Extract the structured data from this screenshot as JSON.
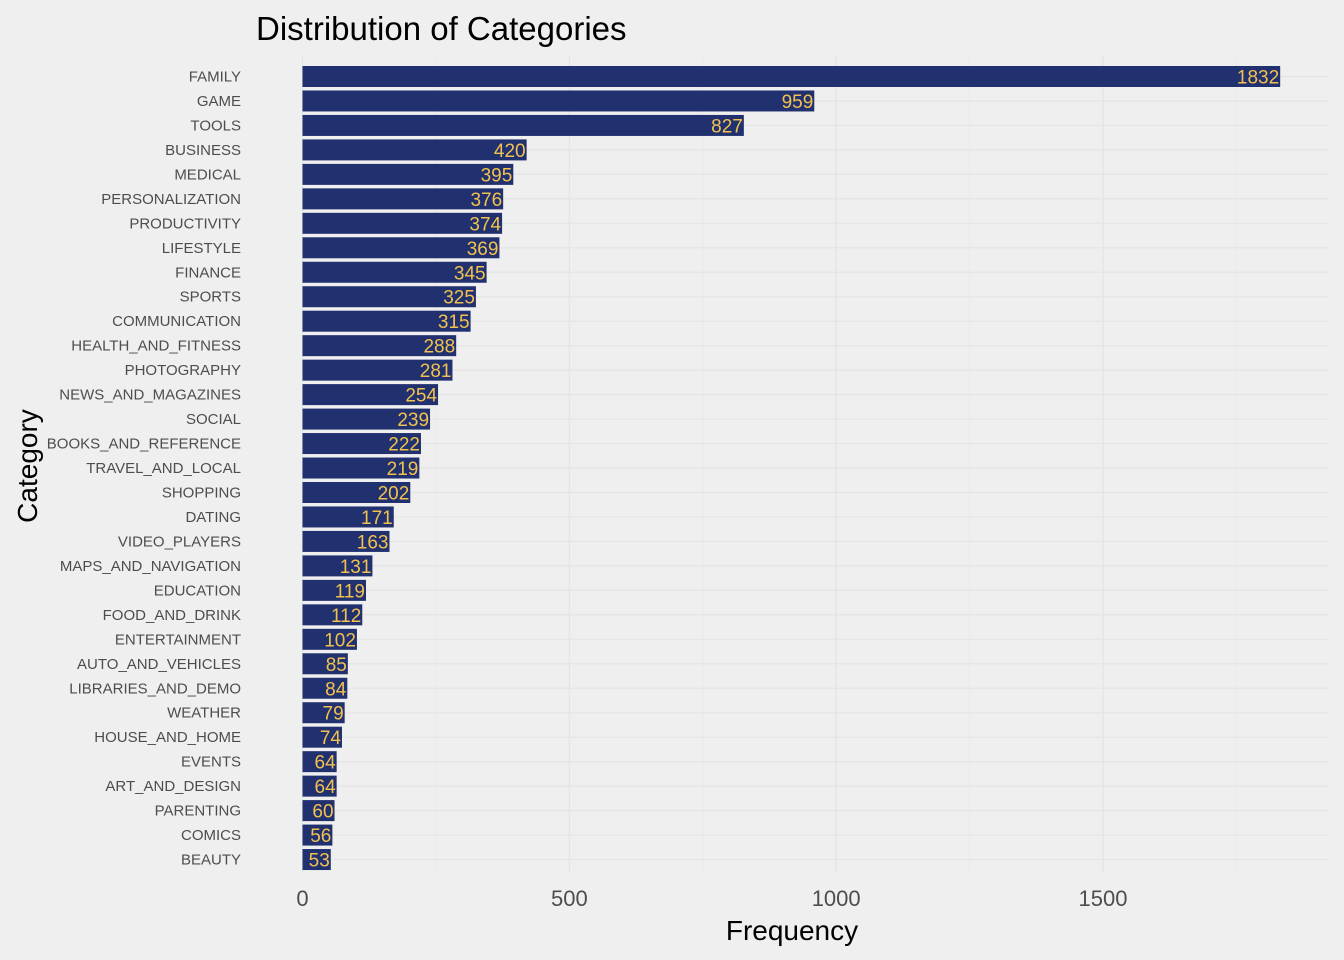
{
  "chart_data": {
    "type": "bar",
    "orientation": "horizontal",
    "title": "Distribution of Categories",
    "xlabel": "Frequency",
    "ylabel": "Category",
    "xlim": [
      0,
      1900
    ],
    "x_ticks": [
      0,
      500,
      1000,
      1500
    ],
    "grid": true,
    "legend": "none",
    "colors": {
      "bar": "#213170",
      "label": "#f2c14e",
      "background": "#efefef"
    },
    "categories": [
      "FAMILY",
      "GAME",
      "TOOLS",
      "BUSINESS",
      "MEDICAL",
      "PERSONALIZATION",
      "PRODUCTIVITY",
      "LIFESTYLE",
      "FINANCE",
      "SPORTS",
      "COMMUNICATION",
      "HEALTH_AND_FITNESS",
      "PHOTOGRAPHY",
      "NEWS_AND_MAGAZINES",
      "SOCIAL",
      "BOOKS_AND_REFERENCE",
      "TRAVEL_AND_LOCAL",
      "SHOPPING",
      "DATING",
      "VIDEO_PLAYERS",
      "MAPS_AND_NAVIGATION",
      "EDUCATION",
      "FOOD_AND_DRINK",
      "ENTERTAINMENT",
      "AUTO_AND_VEHICLES",
      "LIBRARIES_AND_DEMO",
      "WEATHER",
      "HOUSE_AND_HOME",
      "EVENTS",
      "ART_AND_DESIGN",
      "PARENTING",
      "COMICS",
      "BEAUTY"
    ],
    "values": [
      1832,
      959,
      827,
      420,
      395,
      376,
      374,
      369,
      345,
      325,
      315,
      288,
      281,
      254,
      239,
      222,
      219,
      202,
      171,
      163,
      131,
      119,
      112,
      102,
      85,
      84,
      79,
      74,
      64,
      64,
      60,
      56,
      53
    ]
  }
}
